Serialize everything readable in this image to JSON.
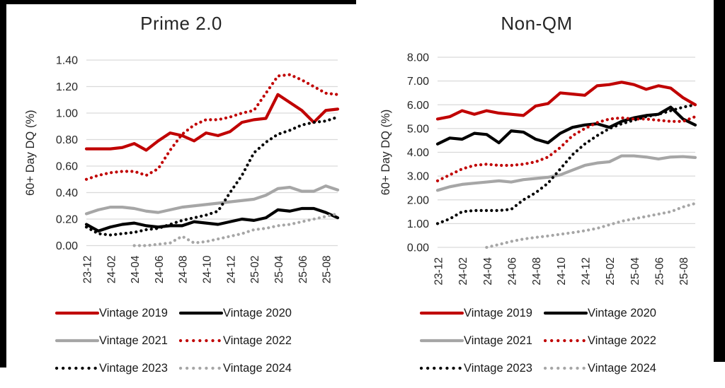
{
  "frame": {
    "color": "#000000"
  },
  "palette": {
    "red": "#C00000",
    "black": "#000000",
    "gray": "#A6A6A6",
    "gridline": "#D9D9D9",
    "axis_text": "#262626"
  },
  "chart_data": [
    {
      "type": "line",
      "title": "Prime 2.0",
      "ylabel": "60+ Day DQ (%)",
      "ylim": [
        0,
        1.4
      ],
      "ystep": 0.2,
      "grid": true,
      "legend_position": "bottom",
      "y_ticks": [
        "0.00",
        "0.20",
        "0.40",
        "0.60",
        "0.80",
        "1.00",
        "1.20",
        "1.40"
      ],
      "x_ticks": [
        "23-12",
        "24-02",
        "24-04",
        "24-06",
        "24-08",
        "24-10",
        "24-12",
        "25-02",
        "25-04",
        "25-06",
        "25-08"
      ],
      "x_labels_every": 2,
      "categories": [
        "23-12",
        "24-01",
        "24-02",
        "24-03",
        "24-04",
        "24-05",
        "24-06",
        "24-07",
        "24-08",
        "24-09",
        "24-10",
        "24-11",
        "24-12",
        "25-01",
        "25-02",
        "25-03",
        "25-04",
        "25-05",
        "25-06",
        "25-07",
        "25-08",
        "25-09"
      ],
      "series": [
        {
          "name": "Vintage 2019",
          "color": "#C00000",
          "style": "solid",
          "values": [
            0.73,
            0.73,
            0.73,
            0.74,
            0.77,
            0.72,
            0.79,
            0.85,
            0.83,
            0.79,
            0.85,
            0.83,
            0.86,
            0.93,
            0.95,
            0.96,
            1.14,
            1.08,
            1.02,
            0.93,
            1.02,
            1.03
          ]
        },
        {
          "name": "Vintage 2020",
          "color": "#000000",
          "style": "solid",
          "values": [
            0.16,
            0.11,
            0.14,
            0.16,
            0.17,
            0.15,
            0.14,
            0.15,
            0.15,
            0.18,
            0.17,
            0.16,
            0.18,
            0.2,
            0.19,
            0.21,
            0.27,
            0.26,
            0.28,
            0.28,
            0.25,
            0.21
          ]
        },
        {
          "name": "Vintage 2021",
          "color": "#A6A6A6",
          "style": "solid",
          "values": [
            0.24,
            0.27,
            0.29,
            0.29,
            0.28,
            0.26,
            0.25,
            0.27,
            0.29,
            0.3,
            0.31,
            0.32,
            0.33,
            0.34,
            0.35,
            0.38,
            0.43,
            0.44,
            0.41,
            0.41,
            0.45,
            0.42
          ]
        },
        {
          "name": "Vintage 2022",
          "color": "#C00000",
          "style": "dotted",
          "values": [
            0.5,
            0.53,
            0.55,
            0.56,
            0.56,
            0.53,
            0.58,
            0.72,
            0.84,
            0.91,
            0.95,
            0.95,
            0.97,
            1.0,
            1.02,
            1.15,
            1.28,
            1.29,
            1.25,
            1.2,
            1.15,
            1.14
          ]
        },
        {
          "name": "Vintage 2023",
          "color": "#000000",
          "style": "dotted",
          "values": [
            0.14,
            0.09,
            0.08,
            0.09,
            0.1,
            0.12,
            0.13,
            0.16,
            0.19,
            0.21,
            0.23,
            0.26,
            0.4,
            0.53,
            0.7,
            0.78,
            0.84,
            0.87,
            0.91,
            0.93,
            0.94,
            0.97
          ]
        },
        {
          "name": "Vintage 2024",
          "color": "#A6A6A6",
          "style": "dotted",
          "values": [
            null,
            null,
            null,
            null,
            0.0,
            0.0,
            0.01,
            0.02,
            0.07,
            0.02,
            0.03,
            0.05,
            0.07,
            0.09,
            0.12,
            0.13,
            0.15,
            0.16,
            0.18,
            0.2,
            0.22,
            0.24
          ]
        }
      ]
    },
    {
      "type": "line",
      "title": "Non-QM",
      "ylabel": "60+ Day DQ (%)",
      "ylim": [
        0,
        8
      ],
      "ystep": 1,
      "grid": true,
      "legend_position": "bottom",
      "y_ticks": [
        "0.00",
        "1.00",
        "2.00",
        "3.00",
        "4.00",
        "5.00",
        "6.00",
        "7.00",
        "8.00"
      ],
      "x_ticks": [
        "23-12",
        "24-02",
        "24-04",
        "24-06",
        "24-08",
        "24-10",
        "24-12",
        "25-02",
        "25-04",
        "25-06",
        "25-08"
      ],
      "x_labels_every": 2,
      "categories": [
        "23-12",
        "24-01",
        "24-02",
        "24-03",
        "24-04",
        "24-05",
        "24-06",
        "24-07",
        "24-08",
        "24-09",
        "24-10",
        "24-11",
        "24-12",
        "25-01",
        "25-02",
        "25-03",
        "25-04",
        "25-05",
        "25-06",
        "25-07",
        "25-08",
        "25-09"
      ],
      "series": [
        {
          "name": "Vintage 2019",
          "color": "#C00000",
          "style": "solid",
          "values": [
            5.4,
            5.5,
            5.75,
            5.6,
            5.75,
            5.65,
            5.6,
            5.55,
            5.95,
            6.05,
            6.5,
            6.45,
            6.4,
            6.8,
            6.85,
            6.95,
            6.85,
            6.65,
            6.8,
            6.7,
            6.3,
            6.0
          ]
        },
        {
          "name": "Vintage 2020",
          "color": "#000000",
          "style": "solid",
          "values": [
            4.35,
            4.6,
            4.55,
            4.8,
            4.75,
            4.4,
            4.9,
            4.85,
            4.55,
            4.4,
            4.8,
            5.05,
            5.15,
            5.2,
            5.05,
            5.3,
            5.45,
            5.55,
            5.6,
            5.9,
            5.4,
            5.15
          ]
        },
        {
          "name": "Vintage 2021",
          "color": "#A6A6A6",
          "style": "solid",
          "values": [
            2.4,
            2.55,
            2.65,
            2.7,
            2.75,
            2.8,
            2.75,
            2.85,
            2.9,
            2.95,
            3.05,
            3.25,
            3.45,
            3.55,
            3.6,
            3.85,
            3.85,
            3.8,
            3.72,
            3.8,
            3.82,
            3.78
          ]
        },
        {
          "name": "Vintage 2022",
          "color": "#C00000",
          "style": "dotted",
          "values": [
            2.8,
            3.05,
            3.3,
            3.45,
            3.5,
            3.45,
            3.45,
            3.5,
            3.6,
            3.8,
            4.2,
            4.7,
            5.0,
            5.25,
            5.4,
            5.45,
            5.4,
            5.4,
            5.35,
            5.3,
            5.3,
            5.5
          ]
        },
        {
          "name": "Vintage 2023",
          "color": "#000000",
          "style": "dotted",
          "values": [
            1.0,
            1.2,
            1.5,
            1.55,
            1.55,
            1.55,
            1.6,
            2.0,
            2.3,
            2.7,
            3.3,
            3.9,
            4.35,
            4.7,
            5.0,
            5.2,
            5.35,
            5.5,
            5.6,
            5.75,
            5.9,
            6.0
          ]
        },
        {
          "name": "Vintage 2024",
          "color": "#A6A6A6",
          "style": "dotted",
          "values": [
            null,
            null,
            null,
            null,
            0.0,
            0.12,
            0.25,
            0.35,
            0.42,
            0.48,
            0.55,
            0.62,
            0.7,
            0.8,
            0.95,
            1.1,
            1.2,
            1.3,
            1.4,
            1.5,
            1.7,
            1.85
          ]
        }
      ]
    }
  ]
}
